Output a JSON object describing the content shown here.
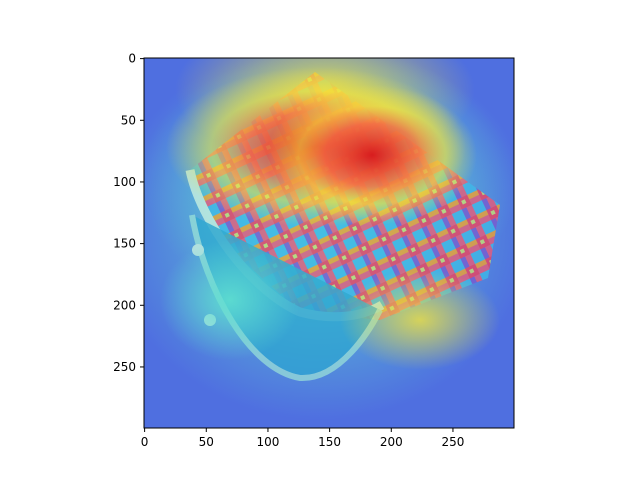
{
  "chart_data": {
    "type": "heatmap",
    "title": "",
    "xlabel": "",
    "ylabel": "",
    "image_width": 300,
    "image_height": 300,
    "xlim": [
      -0.5,
      299.5
    ],
    "ylim": [
      299.5,
      -0.5
    ],
    "y_axis_inverted": true,
    "x_ticks": [
      0,
      50,
      100,
      150,
      200,
      250
    ],
    "y_ticks": [
      0,
      50,
      100,
      150,
      200,
      250
    ],
    "x_tick_labels": [
      "0",
      "50",
      "100",
      "150",
      "200",
      "250"
    ],
    "y_tick_labels": [
      "0",
      "50",
      "100",
      "150",
      "200",
      "250"
    ],
    "grid": false,
    "legend": "none",
    "colormap": "jet",
    "heatmap_hotspots": [
      {
        "x": 140,
        "y": 70,
        "intensity": 1.0
      },
      {
        "x": 105,
        "y": 85,
        "intensity": 0.95
      },
      {
        "x": 185,
        "y": 80,
        "intensity": 0.9
      },
      {
        "x": 140,
        "y": 20,
        "intensity": 0.6
      },
      {
        "x": 230,
        "y": 210,
        "intensity": 0.5
      }
    ],
    "overlay_subject": "coin-purse-photo",
    "colors": {
      "hot": "#d7191c",
      "warm": "#f5e33b",
      "mid": "#5fe0d0",
      "cool": "#4f6fe0",
      "purse_stripe_1": "#e83a6b",
      "purse_stripe_2": "#3fb8e8",
      "purse_stripe_3": "#f0a030",
      "frame": "#8fd8c8"
    }
  }
}
